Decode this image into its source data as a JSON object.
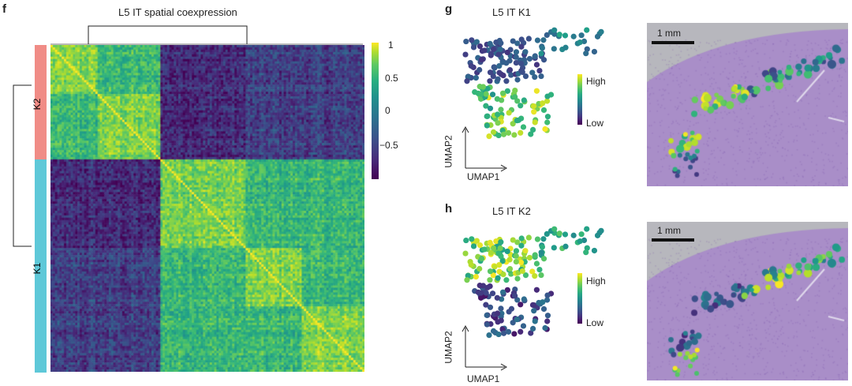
{
  "panel_f": {
    "letter": "f",
    "title": "L5 IT spatial coexpression",
    "cluster_labels": [
      "K2",
      "K1"
    ],
    "cluster_colors": [
      "#f08c86",
      "#5ec8d8"
    ],
    "colorbar_ticks": [
      "1",
      "0.5",
      "0",
      "−0.5"
    ],
    "colormap": "viridis"
  },
  "panel_g": {
    "letter": "g",
    "title": "L5 IT K1",
    "legend_high": "High",
    "legend_low": "Low",
    "xaxis": "UMAP1",
    "yaxis": "UMAP2",
    "scalebar": "1 mm"
  },
  "panel_h": {
    "letter": "h",
    "title": "L5 IT K2",
    "legend_high": "High",
    "legend_low": "Low",
    "xaxis": "UMAP1",
    "yaxis": "UMAP2",
    "scalebar": "1 mm"
  }
}
